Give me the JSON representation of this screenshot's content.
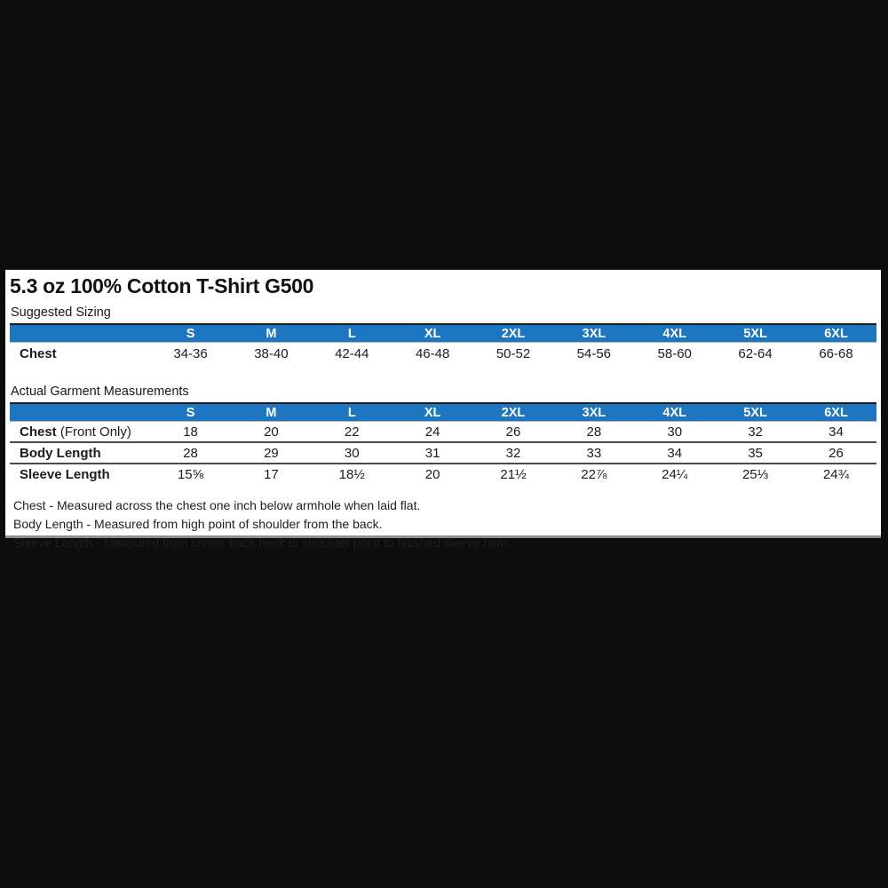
{
  "header": {
    "title": "5.3 oz 100% Cotton T-Shirt G500"
  },
  "colors": {
    "page_bg": "#0c0c0c",
    "panel_bg": "#ffffff",
    "table_header_bg": "#1d76bf",
    "table_header_text": "#ffffff"
  },
  "suggested_sizing": {
    "label": "Suggested Sizing",
    "columns": [
      "S",
      "M",
      "L",
      "XL",
      "2XL",
      "3XL",
      "4XL",
      "5XL",
      "6XL"
    ],
    "rows": [
      {
        "label_bold": "Chest",
        "label_normal": "",
        "values": [
          "34-36",
          "38-40",
          "42-44",
          "46-48",
          "50-52",
          "54-56",
          "58-60",
          "62-64",
          "66-68"
        ]
      }
    ]
  },
  "garment_measurements": {
    "label": "Actual Garment Measurements",
    "columns": [
      "S",
      "M",
      "L",
      "XL",
      "2XL",
      "3XL",
      "4XL",
      "5XL",
      "6XL"
    ],
    "rows": [
      {
        "label_bold": "Chest",
        "label_normal": " (Front Only)",
        "values": [
          "18",
          "20",
          "22",
          "24",
          "26",
          "28",
          "30",
          "32",
          "34"
        ]
      },
      {
        "label_bold": "Body Length",
        "label_normal": "",
        "values": [
          "28",
          "29",
          "30",
          "31",
          "32",
          "33",
          "34",
          "35",
          "26"
        ]
      },
      {
        "label_bold": "Sleeve Length",
        "label_normal": "",
        "values": [
          "15⅝",
          "17",
          "18½",
          "20",
          "21½",
          "22⅞",
          "24¼",
          "25⅓",
          "24¾"
        ]
      }
    ]
  },
  "footnotes": [
    "Chest - Measured across the chest one inch below armhole when laid flat.",
    "Body Length - Measured from high point of shoulder from the back.",
    "Sleeve Length - Measured from center back neck to shoulder point to finished sleeve hem."
  ]
}
